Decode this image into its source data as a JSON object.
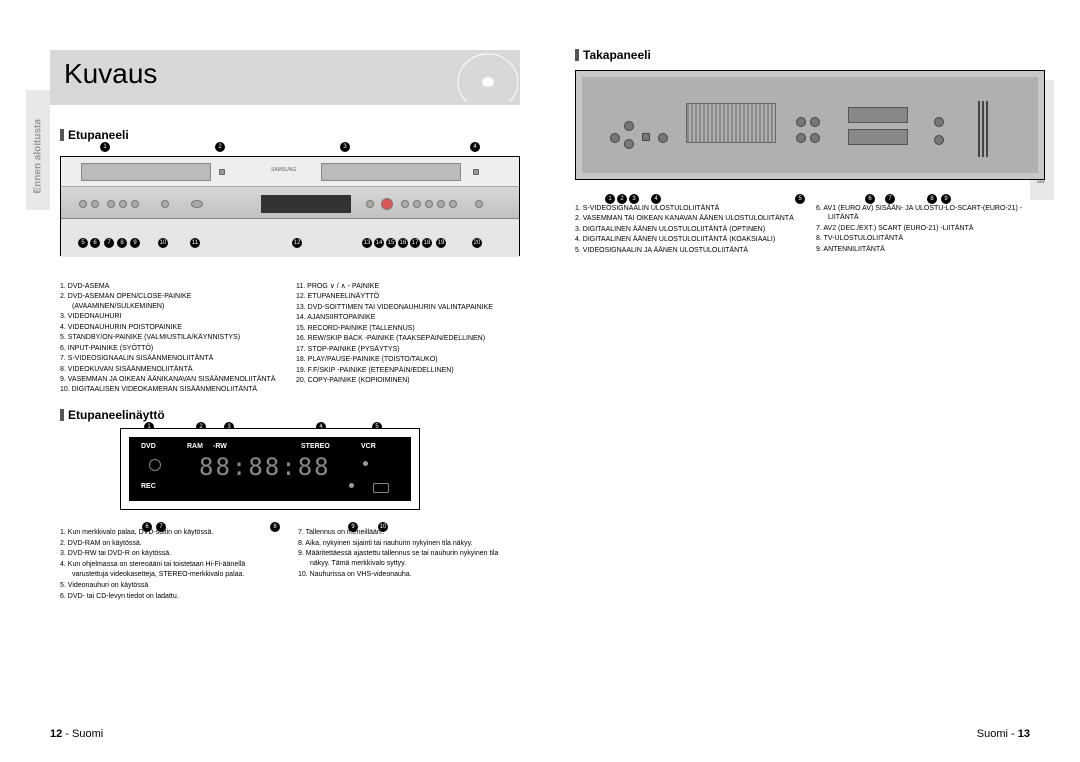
{
  "main_title": "Kuvaus",
  "side_tab_text": "Ennen aloitusta",
  "sections": {
    "front_panel": "Etupaneeli",
    "display": "Etupaneelinäyttö",
    "rear_panel": "Takapaneeli"
  },
  "front_panel_legend_left": [
    "DVD-ASEMA",
    "DVD-ASEMAN OPEN/CLOSE-PAINIKE (AVAAMINEN/SULKEMINEN)",
    "VIDEONAUHURI",
    "VIDEONAUHURIN POISTOPAINIKE",
    "STANDBY/ON-PAINIKE (VALMIUSTILA/KÄYNNISTYS)",
    "INPUT-PAINIKE (SYÖTTÖ)",
    "S-VIDEOSIGNAALIN SISÄÄNMENOLIITÄNTÄ",
    "VIDEOKUVAN SISÄÄNMENOLIITÄNTÄ",
    "VASEMMAN JA OIKEAN ÄÄNIKANAVAN SISÄÄNMENOLIITÄNTÄ",
    "DIGITAALISEN VIDEOKAMERAN SISÄÄNMENOLIITÄNTÄ"
  ],
  "front_panel_legend_right": [
    "PROG ∨ / ∧ - PAINIKE",
    "ETUPANEELINÄYTTÖ",
    "DVD-SOITTIMEN TAI VIDEONAUHURIN VALINTAPAINIKE",
    "AJANSIIRTOPAINIKE",
    "RECORD-PAINIKE (TALLENNUS)",
    "REW/SKIP BACK -PAINIKE (TAAKSEPÄIN/EDELLINEN)",
    "STOP-PAINIKE (PYSÄYTYS)",
    "PLAY/PAUSE-PAINIKE (TOISTO/TAUKO)",
    "F.F/SKIP -PAINIKE (ETEENPÄIN/EDELLINEN)",
    "COPY-PAINIKE (KOPIOIMINEN)"
  ],
  "display_labels": {
    "dvd": "DVD",
    "ram": "RAM",
    "rw": "-RW",
    "stereo": "STEREO",
    "vcr": "VCR",
    "rec": "REC"
  },
  "display_segments": "88:88:88",
  "display_legend_left": [
    "Kun merkkivalo palaa, DVD-soitin on käytössä.",
    "DVD-RAM on käytössä.",
    "DVD-RW tai DVD-R on käytössä.",
    "Kun ohjelmassa on stereoääni tai toistetaan Hi-Fi-äänellä varustettuja videokasetteja, STEREO-merkkivalo palaa.",
    "Videonauhuri on käytössä",
    "DVD- tai CD-levyn tiedot on ladattu."
  ],
  "display_legend_right": [
    "Tallennus on meneillään..",
    "Aika, nykyinen sijainti tai nauhurin nykyinen tila näkyy.",
    "Määritettäessä ajastettu tallennus se tai nauhurin nykyinen tila näkyy. Tämä merkkivalo syttyy.",
    "Nauhurissa on VHS-videonauha."
  ],
  "rear_legend_left": [
    "S-VIDEOSIGNAALIN ULOSTULOLIITÄNTÄ",
    "VASEMMAN TAI OIKEAN KANAVAN ÄÄNEN ULOSTULOLIITÄNTÄ",
    "DIGITAALINEN ÄÄNEN ULOSTULOLIITÄNTÄ (OPTINEN)",
    "DIGITAALINEN ÄÄNEN ULOSTULOLIITÄNTÄ (KOAKSIAALI)",
    "VIDEOSIGNAALIN JA ÄÄNEN ULOSTULOLIITÄNTÄ"
  ],
  "rear_legend_right": [
    "AV1 (EURO AV) SISÄÄN- JA ULOSTU-LO-SCART-(EURO-21) -LIITÄNTÄ",
    "AV2 (DEC./EXT.) SCART (EURO-21) -LIITÄNTÄ",
    "TV-ULOSTULOLIITÄNTÄ",
    "ANTENNILIITÄNTÄ"
  ],
  "footer_left_page": "12",
  "footer_left_label": "Suomi",
  "footer_right_label": "Suomi",
  "footer_right_page": "13",
  "colors": {
    "gray_box": "#d8d8d8",
    "side_tab": "#e8e8e8",
    "rear_bg": "#c8c8c8"
  }
}
